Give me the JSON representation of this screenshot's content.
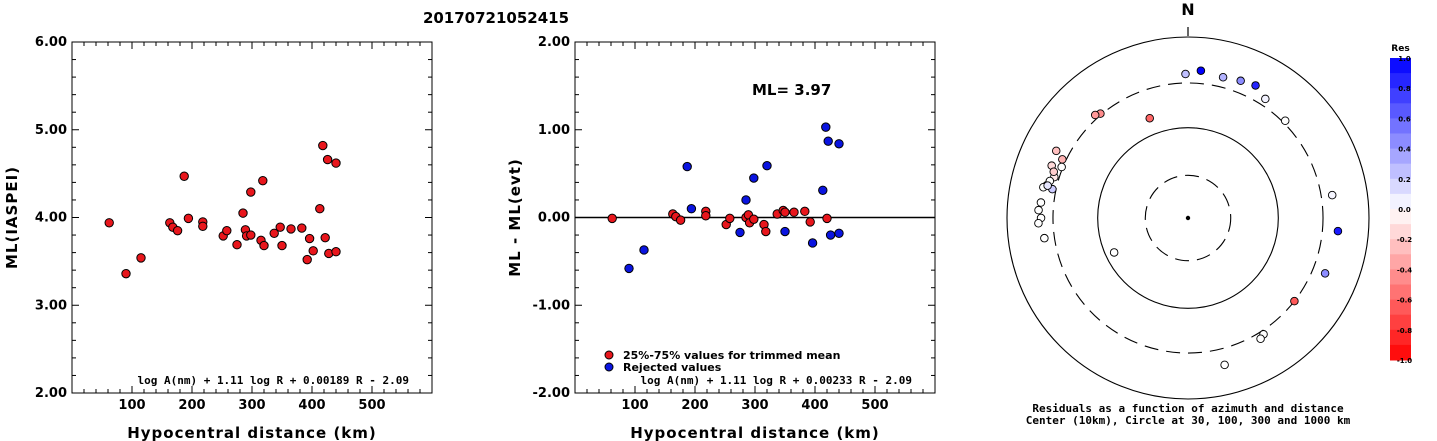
{
  "event_id": "20170721052415",
  "chart_data": [
    {
      "type": "scatter",
      "title": "",
      "xlabel": "Hypocentral distance (km)",
      "ylabel": "ML(IASPEI)",
      "xlim": [
        0,
        600
      ],
      "ylim": [
        2.0,
        6.0
      ],
      "xticks": [
        "100",
        "200",
        "300",
        "400",
        "500"
      ],
      "yticks": [
        "2.00",
        "3.00",
        "4.00",
        "5.00",
        "6.00"
      ],
      "formula": "log A(nm) + 1.11 log R + 0.00189 R - 2.09",
      "marker_color": "#e8161c",
      "points": [
        [
          62,
          3.94
        ],
        [
          90,
          3.36
        ],
        [
          115,
          3.54
        ],
        [
          163,
          3.94
        ],
        [
          168,
          3.89
        ],
        [
          176,
          3.85
        ],
        [
          187,
          4.47
        ],
        [
          194,
          3.99
        ],
        [
          218,
          3.95
        ],
        [
          218,
          3.9
        ],
        [
          252,
          3.79
        ],
        [
          258,
          3.85
        ],
        [
          275,
          3.69
        ],
        [
          285,
          4.05
        ],
        [
          289,
          3.86
        ],
        [
          291,
          3.79
        ],
        [
          298,
          4.29
        ],
        [
          298,
          3.8
        ],
        [
          315,
          3.74
        ],
        [
          318,
          4.42
        ],
        [
          320,
          3.68
        ],
        [
          337,
          3.82
        ],
        [
          347,
          3.89
        ],
        [
          350,
          3.68
        ],
        [
          365,
          3.87
        ],
        [
          383,
          3.88
        ],
        [
          392,
          3.52
        ],
        [
          396,
          3.76
        ],
        [
          402,
          3.62
        ],
        [
          413,
          4.1
        ],
        [
          418,
          4.82
        ],
        [
          422,
          3.77
        ],
        [
          426,
          4.66
        ],
        [
          428,
          3.59
        ],
        [
          440,
          4.62
        ],
        [
          440,
          3.61
        ]
      ]
    },
    {
      "type": "scatter",
      "title": "",
      "xlabel": "Hypocentral distance (km)",
      "ylabel": "ML - ML(evt)",
      "xlim": [
        0,
        600
      ],
      "ylim": [
        -2.0,
        2.0
      ],
      "xticks": [
        "100",
        "200",
        "300",
        "400",
        "500"
      ],
      "yticks": [
        "-2.00",
        "-1.00",
        "0.00",
        "1.00",
        "2.00"
      ],
      "ml_label": "ML= 3.97",
      "formula": "log A(nm) + 1.11 log R + 0.00233 R - 2.09",
      "legend": [
        {
          "label": "25%-75% values for trimmed mean",
          "color": "#e8161c"
        },
        {
          "label": "Rejected values",
          "color": "#0a14e0"
        }
      ],
      "zero_line": 0,
      "series": [
        {
          "color": "#e8161c",
          "points": [
            [
              62,
              -0.01
            ],
            [
              163,
              0.04
            ],
            [
              168,
              0.01
            ],
            [
              176,
              -0.03
            ],
            [
              218,
              0.07
            ],
            [
              218,
              0.02
            ],
            [
              252,
              -0.08
            ],
            [
              258,
              -0.01
            ],
            [
              285,
              0.0
            ],
            [
              289,
              0.03
            ],
            [
              291,
              -0.06
            ],
            [
              298,
              -0.02
            ],
            [
              315,
              -0.08
            ],
            [
              318,
              -0.16
            ],
            [
              337,
              0.04
            ],
            [
              347,
              0.08
            ],
            [
              350,
              0.06
            ],
            [
              365,
              0.06
            ],
            [
              383,
              0.07
            ],
            [
              392,
              -0.05
            ],
            [
              420,
              -0.01
            ]
          ]
        },
        {
          "color": "#0a14e0",
          "points": [
            [
              90,
              -0.58
            ],
            [
              115,
              -0.37
            ],
            [
              187,
              0.58
            ],
            [
              194,
              0.1
            ],
            [
              275,
              -0.17
            ],
            [
              285,
              0.2
            ],
            [
              298,
              0.45
            ],
            [
              320,
              0.59
            ],
            [
              350,
              -0.16
            ],
            [
              396,
              -0.29
            ],
            [
              413,
              0.31
            ],
            [
              418,
              1.03
            ],
            [
              422,
              0.87
            ],
            [
              426,
              -0.2
            ],
            [
              440,
              0.84
            ],
            [
              440,
              -0.18
            ]
          ]
        }
      ]
    },
    {
      "type": "scatter",
      "subtype": "polar-azimuth-distance",
      "north_label": "N",
      "caption_line1": "Residuals as a function of azimuth and distance",
      "caption_line2": "Center (10km), Circle at 30, 100, 300 and 1000 km",
      "distance_rings_km": [
        30,
        100,
        300,
        1000
      ],
      "colorbar": {
        "title": "Res",
        "ticks": [
          "1.0",
          "0.8",
          "0.6",
          "0.4",
          "0.2",
          "0.0",
          "-0.2",
          "-0.4",
          "-0.6",
          "-0.8",
          "-1.0"
        ],
        "max_color": "#0000ff",
        "zero_color": "#ffffff",
        "min_color": "#ff0000"
      },
      "stations": [
        {
          "azimuth": 5,
          "distance_km": 420,
          "residual": 1.0
        },
        {
          "azimuth": 359,
          "distance_km": 380,
          "residual": 0.25
        },
        {
          "azimuth": 14,
          "distance_km": 390,
          "residual": 0.3
        },
        {
          "azimuth": 21,
          "distance_km": 410,
          "residual": 0.45
        },
        {
          "azimuth": 27,
          "distance_km": 430,
          "residual": 0.85
        },
        {
          "azimuth": 33,
          "distance_km": 360,
          "residual": 0.05
        },
        {
          "azimuth": 45,
          "distance_km": 320,
          "residual": 0.0
        },
        {
          "azimuth": 81,
          "distance_km": 400,
          "residual": 0.04
        },
        {
          "azimuth": 95,
          "distance_km": 450,
          "residual": 0.9
        },
        {
          "azimuth": 112,
          "distance_km": 420,
          "residual": 0.45
        },
        {
          "azimuth": 128,
          "distance_km": 300,
          "residual": -0.65
        },
        {
          "azimuth": 147,
          "distance_km": 330,
          "residual": 0.0
        },
        {
          "azimuth": 149,
          "distance_km": 350,
          "residual": 0.0
        },
        {
          "azimuth": 166,
          "distance_km": 460,
          "residual": 0.0
        },
        {
          "azimuth": 245,
          "distance_km": 80,
          "residual": 0.0
        },
        {
          "azimuth": 262,
          "distance_km": 390,
          "residual": 0.0
        },
        {
          "azimuth": 283,
          "distance_km": 390,
          "residual": 0.0
        },
        {
          "azimuth": 282,
          "distance_km": 330,
          "residual": 0.2
        },
        {
          "azimuth": 339,
          "distance_km": 150,
          "residual": -0.6
        },
        {
          "azimuth": 320,
          "distance_km": 310,
          "residual": -0.45
        },
        {
          "azimuth": 318,
          "distance_km": 330,
          "residual": -0.4
        },
        {
          "azimuth": 297,
          "distance_km": 420,
          "residual": -0.25
        },
        {
          "azimuth": 291,
          "distance_km": 400,
          "residual": -0.15
        },
        {
          "azimuth": 282,
          "distance_km": 420,
          "residual": 0.0
        },
        {
          "azimuth": 287,
          "distance_km": 340,
          "residual": -0.1
        },
        {
          "azimuth": 289,
          "distance_km": 360,
          "residual": -0.2
        },
        {
          "azimuth": 285,
          "distance_km": 370,
          "residual": 0.0
        },
        {
          "azimuth": 295,
          "distance_km": 330,
          "residual": -0.3
        },
        {
          "azimuth": 292,
          "distance_km": 310,
          "residual": 0.0
        },
        {
          "azimuth": 283,
          "distance_km": 380,
          "residual": 0.1
        },
        {
          "azimuth": 276,
          "distance_km": 420,
          "residual": 0.0
        },
        {
          "azimuth": 273,
          "distance_km": 440,
          "residual": 0.0
        },
        {
          "azimuth": 270,
          "distance_km": 410,
          "residual": 0.0
        },
        {
          "azimuth": 268,
          "distance_km": 440,
          "residual": 0.0
        }
      ]
    }
  ]
}
